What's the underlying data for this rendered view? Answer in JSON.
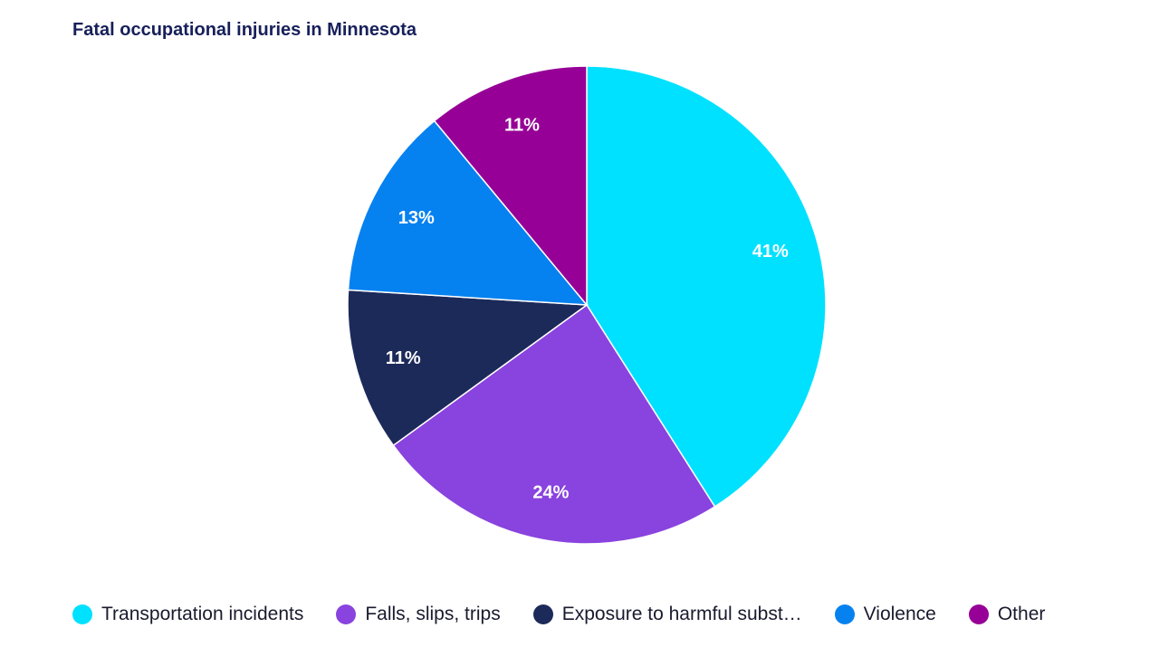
{
  "chart_data": {
    "type": "pie",
    "title": "Fatal occupational injuries in Minnesota",
    "slices": [
      {
        "name": "Transportation incidents",
        "value": 41,
        "label": "41%",
        "color": "#00e1ff"
      },
      {
        "name": "Falls, slips, trips",
        "value": 24,
        "label": "24%",
        "color": "#8943de"
      },
      {
        "name": "Exposure to harmful subst…",
        "value": 11,
        "label": "11%",
        "color": "#1c2a5a"
      },
      {
        "name": "Violence",
        "value": 13,
        "label": "13%",
        "color": "#0681f0"
      },
      {
        "name": "Other",
        "value": 11,
        "label": "11%",
        "color": "#960096"
      }
    ],
    "legend_position": "bottom"
  }
}
